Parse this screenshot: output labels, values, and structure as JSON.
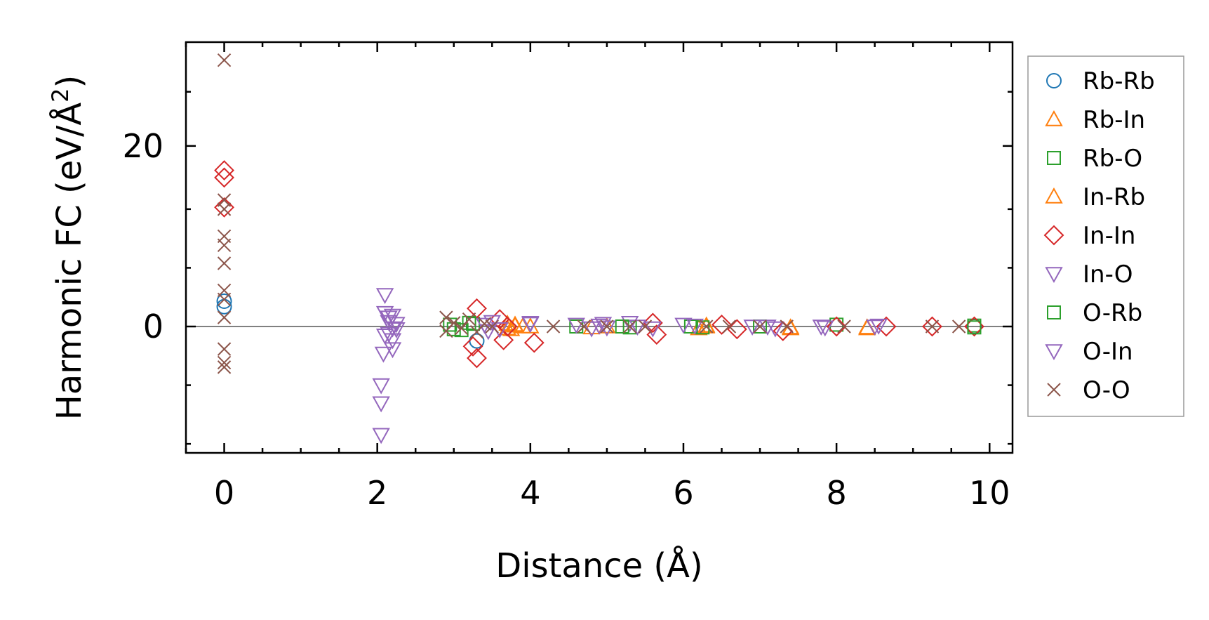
{
  "chart_data": {
    "type": "scatter",
    "xlabel": "Distance (Å)",
    "ylabel_main": "Harmonic FC (eV/Å",
    "ylabel_sup": "2",
    "ylabel_close": ")",
    "xlim": [
      -0.5,
      10.3
    ],
    "ylim": [
      -14,
      31.5
    ],
    "xticks": [
      0,
      2,
      4,
      6,
      8,
      10
    ],
    "xtick_labels": [
      "0",
      "2",
      "4",
      "6",
      "8",
      "10"
    ],
    "yticks": [
      0,
      20
    ],
    "ytick_labels": [
      "0",
      "20"
    ],
    "zero_line": true,
    "legend_position": "right",
    "series": [
      {
        "name": "Rb-Rb",
        "marker": "circle",
        "color": "#1f77b4",
        "points": [
          [
            0,
            2.2
          ],
          [
            0,
            2.8
          ],
          [
            3.3,
            -1.6
          ],
          [
            9.8,
            0
          ]
        ]
      },
      {
        "name": "Rb-In",
        "marker": "triangle-up",
        "color": "#ff7f0e",
        "points": [
          [
            3.7,
            0.3
          ],
          [
            3.75,
            -0.3
          ],
          [
            3.8,
            0.1
          ],
          [
            3.9,
            0
          ],
          [
            4.0,
            0
          ],
          [
            6.2,
            -0.2
          ],
          [
            6.3,
            0
          ],
          [
            7.4,
            -0.2
          ],
          [
            8.4,
            -0.1
          ]
        ]
      },
      {
        "name": "Rb-O",
        "marker": "square",
        "color": "#2ca02c",
        "points": [
          [
            2.95,
            0.2
          ],
          [
            3.1,
            -0.4
          ],
          [
            3.25,
            0.3
          ],
          [
            4.6,
            0
          ],
          [
            5.3,
            -0.1
          ],
          [
            6.1,
            0
          ],
          [
            7.0,
            0
          ],
          [
            8.0,
            0.2
          ],
          [
            9.8,
            0.1
          ]
        ]
      },
      {
        "name": "In-Rb",
        "marker": "triangle-up",
        "color": "#ff7f0e",
        "points": [
          [
            3.7,
            -0.2
          ],
          [
            3.8,
            0.2
          ],
          [
            4.8,
            -0.1
          ],
          [
            5.0,
            0
          ],
          [
            6.3,
            0.1
          ],
          [
            7.4,
            -0.1
          ],
          [
            8.4,
            -0.2
          ]
        ]
      },
      {
        "name": "In-In",
        "marker": "diamond",
        "color": "#d62728",
        "points": [
          [
            0,
            17.3
          ],
          [
            0,
            16.5
          ],
          [
            0,
            13.2
          ],
          [
            3.3,
            2.0
          ],
          [
            3.3,
            -3.5
          ],
          [
            3.25,
            -2.2
          ],
          [
            3.6,
            0.8
          ],
          [
            3.65,
            -1.5
          ],
          [
            3.7,
            0
          ],
          [
            4.05,
            -1.8
          ],
          [
            5.6,
            0.4
          ],
          [
            5.65,
            -0.9
          ],
          [
            6.5,
            0.2
          ],
          [
            6.7,
            -0.3
          ],
          [
            7.3,
            -0.5
          ],
          [
            8.0,
            0
          ],
          [
            8.65,
            0
          ],
          [
            9.25,
            0
          ],
          [
            9.8,
            0
          ]
        ]
      },
      {
        "name": "In-O",
        "marker": "triangle-down",
        "color": "#9467bd",
        "points": [
          [
            2.05,
            -12.0
          ],
          [
            2.05,
            -8.5
          ],
          [
            2.05,
            -6.5
          ],
          [
            2.08,
            -3.0
          ],
          [
            2.1,
            3.5
          ],
          [
            2.1,
            1.5
          ],
          [
            2.15,
            0.5
          ],
          [
            2.15,
            -0.8
          ],
          [
            2.2,
            1.2
          ],
          [
            2.2,
            -1.5
          ],
          [
            2.2,
            -2.5
          ],
          [
            2.25,
            0.3
          ],
          [
            2.25,
            -0.3
          ],
          [
            3.4,
            0.2
          ],
          [
            3.5,
            0.5
          ],
          [
            3.6,
            -0.3
          ],
          [
            4.0,
            0.4
          ],
          [
            4.6,
            0.2
          ],
          [
            4.8,
            -0.2
          ],
          [
            4.95,
            0.3
          ],
          [
            5.3,
            0.4
          ],
          [
            5.6,
            -0.2
          ],
          [
            6.0,
            0.2
          ],
          [
            6.9,
            0
          ],
          [
            7.2,
            -0.2
          ],
          [
            7.8,
            0
          ],
          [
            8.5,
            0
          ]
        ]
      },
      {
        "name": "O-Rb",
        "marker": "square",
        "color": "#2ca02c",
        "points": [
          [
            3.0,
            -0.3
          ],
          [
            3.2,
            0.4
          ],
          [
            5.2,
            0
          ],
          [
            6.25,
            -0.1
          ],
          [
            9.8,
            -0.1
          ]
        ]
      },
      {
        "name": "O-In",
        "marker": "triangle-down",
        "color": "#9467bd",
        "points": [
          [
            2.1,
            -1.0
          ],
          [
            2.15,
            1.0
          ],
          [
            2.2,
            -0.2
          ],
          [
            3.45,
            -0.5
          ],
          [
            4.0,
            0.3
          ],
          [
            4.9,
            0.1
          ],
          [
            5.0,
            -0.1
          ],
          [
            5.4,
            0
          ],
          [
            6.15,
            0.1
          ],
          [
            7.1,
            0
          ],
          [
            7.85,
            -0.1
          ],
          [
            8.55,
            0.1
          ]
        ]
      },
      {
        "name": "O-O",
        "marker": "x",
        "color": "#8c564b",
        "points": [
          [
            0,
            29.5
          ],
          [
            0,
            14.0
          ],
          [
            0,
            13.0
          ],
          [
            0,
            10.0
          ],
          [
            0,
            9.0
          ],
          [
            0,
            7.0
          ],
          [
            0,
            4.0
          ],
          [
            0,
            3.0
          ],
          [
            0,
            1.0
          ],
          [
            0,
            -2.5
          ],
          [
            0,
            -4.0
          ],
          [
            0,
            -4.5
          ],
          [
            2.9,
            1.0
          ],
          [
            2.9,
            -0.5
          ],
          [
            3.0,
            0.4
          ],
          [
            3.1,
            -0.2
          ],
          [
            3.2,
            0.8
          ],
          [
            3.3,
            -0.6
          ],
          [
            3.4,
            0.3
          ],
          [
            3.5,
            0
          ],
          [
            4.3,
            0
          ],
          [
            4.7,
            0
          ],
          [
            5.0,
            0
          ],
          [
            5.3,
            0
          ],
          [
            5.5,
            0
          ],
          [
            6.3,
            0
          ],
          [
            6.6,
            0
          ],
          [
            7.0,
            0
          ],
          [
            7.35,
            0
          ],
          [
            8.1,
            0
          ],
          [
            9.25,
            0
          ],
          [
            9.6,
            0
          ]
        ]
      }
    ]
  }
}
